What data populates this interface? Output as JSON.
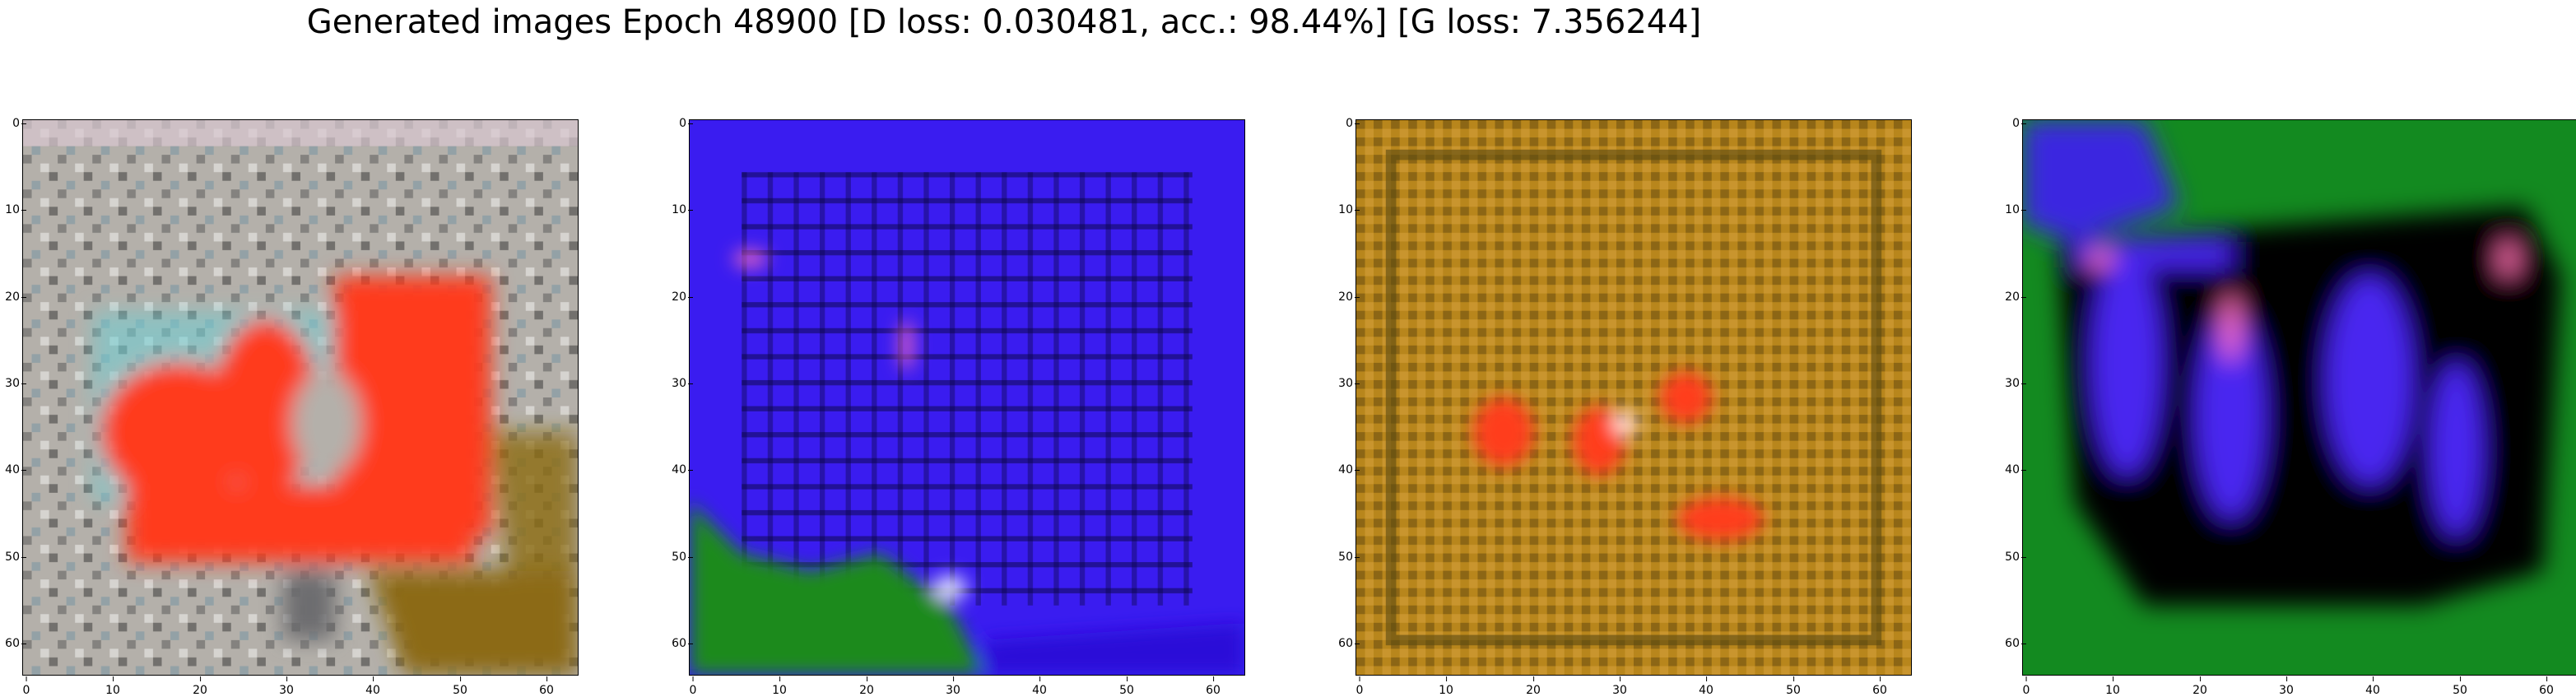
{
  "title": "Generated images Epoch 48900 [D loss: 0.030481, acc.: 98.44%] [G loss: 7.356244]",
  "axes": {
    "x_ticks": [
      "0",
      "10",
      "20",
      "30",
      "40",
      "50",
      "60"
    ],
    "y_ticks": [
      "0",
      "10",
      "20",
      "30",
      "40",
      "50",
      "60"
    ]
  },
  "panels": [
    {
      "palette": {
        "background": "#b4b0aa",
        "subject": "#ff3b1e",
        "accent": "#6ccfd6",
        "corner": "#8c6a12"
      },
      "description_icon": "generated-image"
    },
    {
      "palette": {
        "background": "#3a1cf0",
        "subject": "#2a10d8",
        "accent": "#e060c0",
        "corner": "#1f8a1f"
      },
      "description_icon": "generated-image"
    },
    {
      "palette": {
        "background": "#b8861c",
        "subject": "#ff3c1a",
        "accent": "#5a4a10",
        "corner": "#d8a040"
      },
      "description_icon": "generated-image"
    },
    {
      "palette": {
        "background": "#138a20",
        "subject": "#4a26f0",
        "accent": "#ff70b0",
        "corner": "#000000"
      },
      "description_icon": "generated-image"
    }
  ]
}
